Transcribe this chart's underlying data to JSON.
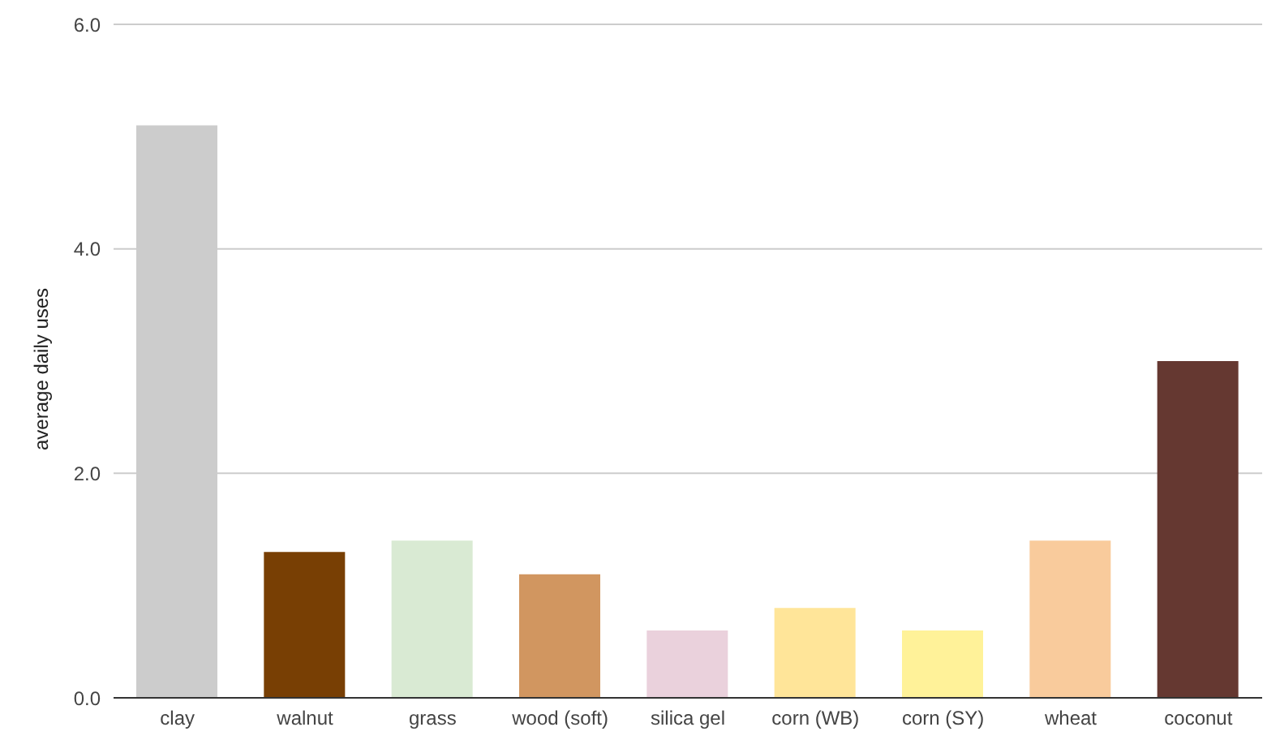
{
  "chart_data": {
    "type": "bar",
    "ylabel": "average daily uses",
    "categories": [
      "clay",
      "walnut",
      "grass",
      "wood (soft)",
      "silica gel",
      "corn (WB)",
      "corn (SY)",
      "wheat",
      "coconut"
    ],
    "values": [
      5.1,
      1.3,
      1.4,
      1.1,
      0.6,
      0.8,
      0.6,
      1.4,
      3.0
    ],
    "colors": [
      "#cccccc",
      "#783f04",
      "#d9ead3",
      "#d19660",
      "#ead1dc",
      "#ffe599",
      "#fff299",
      "#f9cb9c",
      "#653831"
    ],
    "ylim": [
      0,
      6
    ],
    "yticks": [
      {
        "value": 0,
        "label": "0.0"
      },
      {
        "value": 2,
        "label": "2.0"
      },
      {
        "value": 4,
        "label": "4.0"
      },
      {
        "value": 6,
        "label": "6.0"
      }
    ],
    "grid": "y",
    "legend": false
  }
}
